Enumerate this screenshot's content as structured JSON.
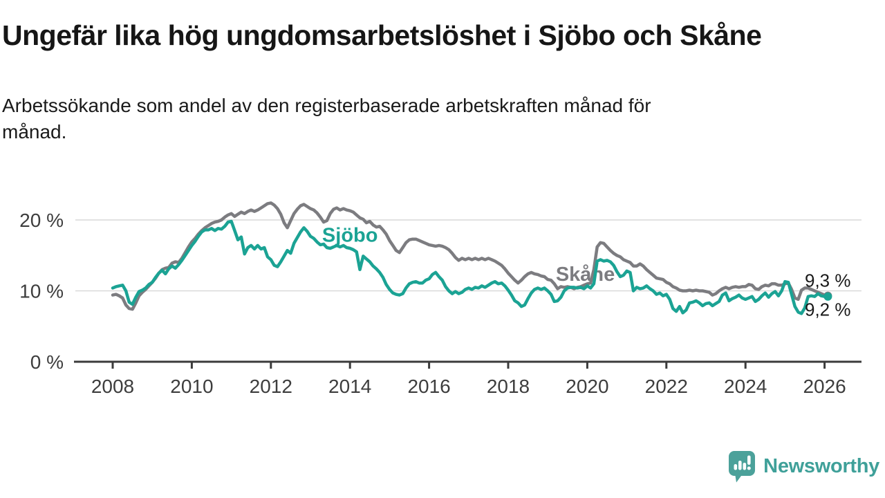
{
  "header": {
    "title": "Ungefär lika hög ungdomsarbetslöshet i Sjöbo och Skåne",
    "subtitle_lines": [
      "Arbetssökande som andel av den registerbaserade arbetskraften månad för",
      "månad."
    ]
  },
  "footer": {
    "brand": "Newsworthy"
  },
  "colors": {
    "sjobo_teal": "#1ba394",
    "skane_gray": "#7c7c80",
    "gridline": "#d9d9d9",
    "axis": "#3b3b3b",
    "tick_text": "#3d3d3d",
    "end_label_text": "#1a1a1a",
    "brand_teal": "#4ba19a"
  },
  "chart_data": {
    "type": "line",
    "unit": "%",
    "x_start_year": 2008,
    "points_per_year": 12,
    "x_tick_labels": [
      "2008",
      "2010",
      "2012",
      "2014",
      "2016",
      "2018",
      "2020",
      "2022",
      "2024",
      "2026"
    ],
    "x_tick_years": [
      2008,
      2010,
      2012,
      2014,
      2016,
      2018,
      2020,
      2022,
      2024,
      2026
    ],
    "y_axis_labels": [
      {
        "value": 0,
        "label": "0 %"
      },
      {
        "value": 10,
        "label": "10 %"
      },
      {
        "value": 20,
        "label": "20 %"
      }
    ],
    "y_gridlines": [
      10,
      20
    ],
    "ylim": [
      0,
      24
    ],
    "grid": true,
    "legend_position": "inline-labels",
    "series": [
      {
        "name": "Skåne",
        "color": "#7c7c80",
        "end_label": "9,3 %",
        "end_value": 9.3,
        "label_pos": {
          "year": 2019.95,
          "pct": 12.4
        },
        "values": [
          9.4,
          9.5,
          9.3,
          9.0,
          8.0,
          7.5,
          7.4,
          8.3,
          9.3,
          9.8,
          10.2,
          10.7,
          11.2,
          11.8,
          12.5,
          13.0,
          13.2,
          13.3,
          13.9,
          14.1,
          14.0,
          14.6,
          15.4,
          16.2,
          16.9,
          17.4,
          18.0,
          18.5,
          18.9,
          19.2,
          19.5,
          19.7,
          19.8,
          20.0,
          20.4,
          20.7,
          20.9,
          20.5,
          20.8,
          21.1,
          20.9,
          21.2,
          21.4,
          21.2,
          21.4,
          21.7,
          22.0,
          22.3,
          22.4,
          22.1,
          21.6,
          20.8,
          19.6,
          18.9,
          19.9,
          20.9,
          21.5,
          22.0,
          22.2,
          21.9,
          21.6,
          21.4,
          21.0,
          20.4,
          19.7,
          19.9,
          20.9,
          21.5,
          21.7,
          21.4,
          21.6,
          21.4,
          21.3,
          21.1,
          20.7,
          20.3,
          20.1,
          19.6,
          19.8,
          19.3,
          19.0,
          19.1,
          18.6,
          18.0,
          17.1,
          16.4,
          15.7,
          15.4,
          16.1,
          16.8,
          17.2,
          17.3,
          17.3,
          17.1,
          16.9,
          16.7,
          16.5,
          16.4,
          16.3,
          16.4,
          16.3,
          16.1,
          15.8,
          15.3,
          14.7,
          14.3,
          14.6,
          14.4,
          14.6,
          14.4,
          14.6,
          14.4,
          14.6,
          14.4,
          14.6,
          14.4,
          14.2,
          13.9,
          13.6,
          13.1,
          12.5,
          12.0,
          11.5,
          11.1,
          11.5,
          12.0,
          12.4,
          12.6,
          12.4,
          12.3,
          12.1,
          12.0,
          11.6,
          11.5,
          11.0,
          10.3,
          10.6,
          10.5,
          10.6,
          10.5,
          10.3,
          10.5,
          10.6,
          10.8,
          11.0,
          11.1,
          13.0,
          16.2,
          16.8,
          16.7,
          16.2,
          15.7,
          15.3,
          15.0,
          14.8,
          14.4,
          14.2,
          14.0,
          13.5,
          13.5,
          13.8,
          13.5,
          13.0,
          12.6,
          12.2,
          11.8,
          11.7,
          11.6,
          11.2,
          11.0,
          10.6,
          10.4,
          10.1,
          10.0,
          10.0,
          10.1,
          10.0,
          10.1,
          10.0,
          10.0,
          9.9,
          9.8,
          9.4,
          9.6,
          10.0,
          10.3,
          10.5,
          10.3,
          10.5,
          10.6,
          10.5,
          10.6,
          10.6,
          10.9,
          10.8,
          10.3,
          10.2,
          10.6,
          10.8,
          10.7,
          11.0,
          11.0,
          10.8,
          10.8,
          11.0,
          11.1,
          10.2,
          9.0,
          8.8,
          10.1,
          10.4,
          10.4,
          10.2,
          10.0,
          9.8,
          9.6,
          9.4,
          9.3
        ]
      },
      {
        "name": "Sjöbo",
        "color": "#1ba394",
        "end_label": "9,2 %",
        "end_value": 9.2,
        "label_pos": {
          "year": 2014.0,
          "pct": 17.9
        },
        "values": [
          10.4,
          10.6,
          10.7,
          10.8,
          10.0,
          8.4,
          8.1,
          9.1,
          9.9,
          10.1,
          10.4,
          10.9,
          11.2,
          11.9,
          12.5,
          12.9,
          12.4,
          13.1,
          13.5,
          13.2,
          13.7,
          14.3,
          15.0,
          15.7,
          16.4,
          17.0,
          17.7,
          18.3,
          18.6,
          18.6,
          18.8,
          18.5,
          18.8,
          18.7,
          19.1,
          19.7,
          19.8,
          18.5,
          17.2,
          17.6,
          15.2,
          16.1,
          16.4,
          15.9,
          16.4,
          15.9,
          16.1,
          14.8,
          14.4,
          13.6,
          13.4,
          14.1,
          14.9,
          15.7,
          15.3,
          16.7,
          17.5,
          18.3,
          18.9,
          18.4,
          17.7,
          17.4,
          16.9,
          16.5,
          16.6,
          16.1,
          16.0,
          16.2,
          16.4,
          16.2,
          16.4,
          16.1,
          16.0,
          15.8,
          15.5,
          13.0,
          14.9,
          14.5,
          14.1,
          13.5,
          13.1,
          12.6,
          11.9,
          10.9,
          10.2,
          9.7,
          9.5,
          9.4,
          9.6,
          10.4,
          11.0,
          11.2,
          11.3,
          11.1,
          11.1,
          11.5,
          11.7,
          12.3,
          12.6,
          12.0,
          11.5,
          10.6,
          10.0,
          9.6,
          9.9,
          9.6,
          9.8,
          10.2,
          10.4,
          10.2,
          10.5,
          10.4,
          10.7,
          10.5,
          10.8,
          11.1,
          11.3,
          11.0,
          11.1,
          10.7,
          10.1,
          9.4,
          8.6,
          8.3,
          7.8,
          8.0,
          8.9,
          9.7,
          10.2,
          10.4,
          10.2,
          10.4,
          10.0,
          9.5,
          8.5,
          8.6,
          9.1,
          10.0,
          10.4,
          10.5,
          10.5,
          10.4,
          10.5,
          10.3,
          10.7,
          10.4,
          11.0,
          14.2,
          14.4,
          14.2,
          14.3,
          14.1,
          13.6,
          12.7,
          12.0,
          12.2,
          12.8,
          12.6,
          10.0,
          10.5,
          10.3,
          10.4,
          10.7,
          10.3,
          10.0,
          9.5,
          9.7,
          9.3,
          9.5,
          8.8,
          7.5,
          7.1,
          7.8,
          6.9,
          7.3,
          8.3,
          8.4,
          8.6,
          8.3,
          7.9,
          8.2,
          8.3,
          7.9,
          8.2,
          8.5,
          9.4,
          9.7,
          8.6,
          8.9,
          9.1,
          9.4,
          9.0,
          8.8,
          9.0,
          9.2,
          8.5,
          8.8,
          9.3,
          9.7,
          9.1,
          9.6,
          9.9,
          9.3,
          10.0,
          11.3,
          11.2,
          9.5,
          7.8,
          7.0,
          6.8,
          7.6,
          9.2,
          9.3,
          9.2,
          9.6,
          9.3,
          9.2,
          9.2
        ]
      }
    ]
  }
}
